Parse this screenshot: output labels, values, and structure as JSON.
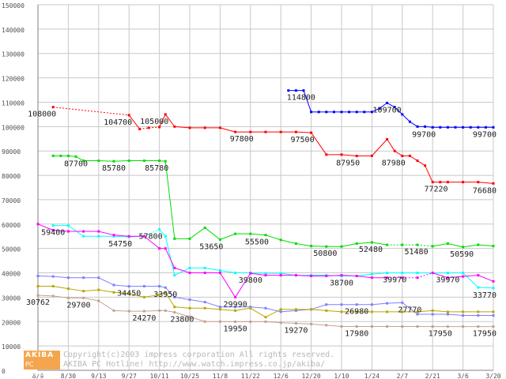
{
  "chart_data": {
    "type": "line",
    "ylim": [
      0,
      150000
    ],
    "yticks": [
      0,
      10000,
      20000,
      30000,
      40000,
      50000,
      60000,
      70000,
      80000,
      90000,
      100000,
      110000,
      120000,
      130000,
      140000,
      150000
    ],
    "ytick_labels": [
      "0",
      "10000",
      "20000",
      "30000",
      "40000",
      "50000",
      "60000",
      "70000",
      "80000",
      "90000",
      "100000",
      "110000",
      "120000",
      "130000",
      "140000",
      "150000"
    ],
    "xlim": [
      0,
      30
    ],
    "x_tick_positions": [
      0,
      2,
      4,
      6,
      8,
      10,
      12,
      14,
      16,
      18,
      20,
      22,
      24,
      26,
      28,
      30
    ],
    "x_tick_labels": [
      "8/9",
      "8/30",
      "9/13",
      "9/27",
      "10/11",
      "10/25",
      "11/8",
      "11/22",
      "12/6",
      "12/20",
      "1/10",
      "1/24",
      "2/7",
      "2/21",
      "3/6",
      "3/20"
    ],
    "grid": true,
    "series": [
      {
        "color": "#0000ff",
        "x": [
          16.5,
          17,
          17.5,
          18,
          18.5,
          19,
          19.5,
          20,
          20.5,
          21,
          21.5,
          22,
          22.5,
          23,
          23.5,
          24,
          24.5,
          25,
          25.5,
          26,
          26.5,
          27,
          27.5,
          28,
          28.5,
          29,
          29.5,
          30
        ],
        "values": [
          114800,
          114800,
          114800,
          106000,
          106000,
          106000,
          106000,
          106000,
          106000,
          106000,
          106000,
          106000,
          107500,
          109700,
          108000,
          105000,
          102000,
          100000,
          100000,
          99700,
          99700,
          99700,
          99700,
          99700,
          99700,
          99700,
          99700,
          99700
        ],
        "dashed_segments": []
      },
      {
        "color": "#ff0000",
        "x": [
          1,
          6,
          6.7,
          7.3,
          8,
          8.4,
          9,
          10,
          11,
          12,
          13,
          14,
          15,
          16,
          17,
          18,
          19,
          20,
          21,
          22,
          23,
          23.5,
          24,
          24.5,
          25,
          25.5,
          26,
          26.5,
          27,
          28,
          29,
          30
        ],
        "values": [
          108000,
          104700,
          99000,
          99500,
          99800,
          105000,
          100000,
          99500,
          99500,
          99500,
          97800,
          97800,
          97800,
          97800,
          97800,
          97500,
          88500,
          88500,
          87950,
          88000,
          94800,
          90000,
          87980,
          88000,
          86000,
          84000,
          77220,
          77220,
          77220,
          77220,
          77220,
          76680
        ],
        "dashed_segments": [
          [
            1,
            6
          ],
          [
            6.7,
            8
          ]
        ]
      },
      {
        "color": "#00dd00",
        "x": [
          1,
          1.5,
          2,
          2.5,
          3,
          4,
          5,
          6,
          7,
          8,
          8.4,
          9,
          10,
          11,
          12,
          13,
          14,
          15,
          16,
          17,
          18,
          19,
          20,
          21,
          22,
          23,
          24,
          25,
          26,
          27,
          28,
          29,
          30
        ],
        "values": [
          88000,
          88000,
          88000,
          87700,
          86000,
          86000,
          85780,
          86000,
          86000,
          86000,
          85780,
          54000,
          54000,
          58500,
          53650,
          56000,
          56000,
          55500,
          53500,
          52000,
          51000,
          50800,
          50800,
          52000,
          52480,
          51480,
          51480,
          51480,
          50900,
          52000,
          50590,
          51500,
          51000
        ],
        "dashed_segments": [
          [
            23,
            26
          ]
        ]
      },
      {
        "color": "#00ffff",
        "x": [
          1,
          2,
          3,
          4,
          5,
          6,
          7,
          8,
          8.4,
          9,
          10,
          11,
          12,
          13,
          14,
          15,
          16,
          17,
          18,
          19,
          20,
          21,
          22,
          23,
          24,
          25,
          26,
          27,
          28,
          29,
          30
        ],
        "values": [
          59400,
          59400,
          55000,
          55000,
          55000,
          54750,
          55000,
          57800,
          55000,
          39000,
          42000,
          42000,
          41000,
          40000,
          40000,
          39800,
          39800,
          39000,
          39000,
          39000,
          38700,
          38700,
          39500,
          39970,
          39970,
          39970,
          39970,
          39970,
          39970,
          34000,
          33770
        ],
        "dashed_segments": [
          [
            7,
            8
          ]
        ]
      },
      {
        "color": "#ff00ff",
        "x": [
          0,
          1,
          2,
          3,
          4,
          5,
          6,
          7,
          8,
          8.4,
          9,
          10,
          11,
          12,
          13,
          14,
          15,
          16,
          17,
          18,
          19,
          20,
          21,
          22,
          23,
          24,
          25,
          26,
          27,
          28,
          29,
          30
        ],
        "values": [
          60000,
          57500,
          57000,
          57000,
          57000,
          55500,
          55000,
          55000,
          50000,
          50000,
          42000,
          40000,
          40000,
          40000,
          29990,
          39800,
          39000,
          39000,
          39000,
          38700,
          38700,
          39000,
          38700,
          38000,
          38000,
          38000,
          38000,
          39970,
          38000,
          38500,
          39000,
          36500
        ],
        "dashed_segments": [
          [
            23,
            26
          ]
        ]
      },
      {
        "color": "#7f7fff",
        "x": [
          0,
          1,
          2,
          3,
          4,
          5,
          6,
          7,
          8,
          8.4,
          9,
          10,
          11,
          12,
          13,
          14,
          15,
          16,
          17,
          18,
          19,
          20,
          21,
          22,
          23,
          24,
          25,
          26,
          27,
          28,
          29,
          30
        ],
        "values": [
          38700,
          38500,
          38000,
          38000,
          38000,
          35000,
          34450,
          34500,
          34500,
          33950,
          30000,
          29000,
          28000,
          26000,
          26000,
          26000,
          25500,
          24000,
          24500,
          25000,
          26980,
          26980,
          26980,
          26980,
          27500,
          27770,
          23000,
          23000,
          23000,
          22500,
          22500,
          22500
        ],
        "dashed_segments": []
      },
      {
        "color": "#b8a800",
        "x": [
          0,
          1,
          2,
          3,
          4,
          5,
          6,
          7,
          8,
          8.4,
          9,
          10,
          11,
          12,
          13,
          14,
          15,
          16,
          17,
          18,
          19,
          20,
          21,
          22,
          23,
          24,
          25,
          26,
          27,
          28,
          29,
          30
        ],
        "values": [
          34500,
          34500,
          33500,
          32500,
          33000,
          32000,
          31500,
          30000,
          31000,
          32000,
          26000,
          25500,
          25500,
          25000,
          24500,
          25500,
          21800,
          25000,
          25000,
          25000,
          24500,
          24000,
          24000,
          24000,
          24000,
          24000,
          24000,
          24500,
          24000,
          24000,
          24000,
          24000
        ],
        "dashed_segments": []
      },
      {
        "color": "#c8a090",
        "x": [
          0,
          1,
          2,
          3,
          4,
          5,
          6,
          7,
          8,
          8.4,
          9,
          10,
          11,
          12,
          13,
          14,
          15,
          16,
          17,
          18,
          19,
          20,
          21,
          22,
          23,
          24,
          25,
          26,
          27,
          28,
          29,
          30
        ],
        "values": [
          30762,
          30500,
          29700,
          29700,
          28500,
          24500,
          24270,
          24270,
          24500,
          24500,
          23800,
          22000,
          20000,
          20000,
          19950,
          19950,
          19950,
          19500,
          19270,
          19000,
          18500,
          18000,
          17980,
          17980,
          17980,
          17980,
          17980,
          17950,
          17950,
          17950,
          17950,
          17950
        ],
        "dashed_segments": []
      }
    ],
    "data_labels": [
      {
        "text": "114800",
        "x": 16.5,
        "y": 114800,
        "pos": "below-right"
      },
      {
        "text": "109700",
        "x": 23,
        "y": 109700,
        "pos": "below"
      },
      {
        "text": "99700",
        "x": 26,
        "y": 99700,
        "pos": "below-left"
      },
      {
        "text": "99700",
        "x": 30,
        "y": 99700,
        "pos": "below-left"
      },
      {
        "text": "108000",
        "x": 1,
        "y": 108000,
        "pos": "below-left"
      },
      {
        "text": "104700",
        "x": 6,
        "y": 104700,
        "pos": "below-left"
      },
      {
        "text": "105000",
        "x": 8.4,
        "y": 105000,
        "pos": "below-left"
      },
      {
        "text": "97800",
        "x": 14,
        "y": 97800,
        "pos": "below-left"
      },
      {
        "text": "97500",
        "x": 18,
        "y": 97500,
        "pos": "below-left"
      },
      {
        "text": "87950",
        "x": 21,
        "y": 87950,
        "pos": "below-left"
      },
      {
        "text": "87980",
        "x": 24,
        "y": 87980,
        "pos": "below-left"
      },
      {
        "text": "77220",
        "x": 26.8,
        "y": 77220,
        "pos": "below-left"
      },
      {
        "text": "76680",
        "x": 30,
        "y": 76680,
        "pos": "below-left"
      },
      {
        "text": "87700",
        "x": 2.5,
        "y": 87700,
        "pos": "below"
      },
      {
        "text": "85780",
        "x": 5,
        "y": 85780,
        "pos": "below"
      },
      {
        "text": "85780",
        "x": 8.4,
        "y": 85780,
        "pos": "below-left"
      },
      {
        "text": "59400",
        "x": 1,
        "y": 59400,
        "pos": "below"
      },
      {
        "text": "54750",
        "x": 6,
        "y": 54750,
        "pos": "below-left"
      },
      {
        "text": "57800",
        "x": 8,
        "y": 57800,
        "pos": "below-left"
      },
      {
        "text": "53650",
        "x": 12,
        "y": 53650,
        "pos": "below-left"
      },
      {
        "text": "55500",
        "x": 15,
        "y": 55500,
        "pos": "below-left"
      },
      {
        "text": "50800",
        "x": 19.5,
        "y": 50800,
        "pos": "below-left"
      },
      {
        "text": "52480",
        "x": 22.5,
        "y": 52480,
        "pos": "below-left"
      },
      {
        "text": "51480",
        "x": 25.5,
        "y": 51480,
        "pos": "below-left"
      },
      {
        "text": "50590",
        "x": 28.5,
        "y": 50590,
        "pos": "below-left"
      },
      {
        "text": "39800",
        "x": 14,
        "y": 39800,
        "pos": "below"
      },
      {
        "text": "38700",
        "x": 20,
        "y": 38700,
        "pos": "below"
      },
      {
        "text": "39970",
        "x": 23.5,
        "y": 39970,
        "pos": "below"
      },
      {
        "text": "39970",
        "x": 27,
        "y": 39970,
        "pos": "below"
      },
      {
        "text": "33770",
        "x": 30,
        "y": 33770,
        "pos": "below-left"
      },
      {
        "text": "30762",
        "x": 0,
        "y": 30762,
        "pos": "below"
      },
      {
        "text": "34450",
        "x": 6,
        "y": 34450,
        "pos": "below"
      },
      {
        "text": "33950",
        "x": 8.4,
        "y": 33950,
        "pos": "below"
      },
      {
        "text": "29700",
        "x": 2,
        "y": 29700,
        "pos": "below-right"
      },
      {
        "text": "24270",
        "x": 7,
        "y": 24270,
        "pos": "below"
      },
      {
        "text": "23800",
        "x": 9.5,
        "y": 23800,
        "pos": "below"
      },
      {
        "text": "29990",
        "x": 13,
        "y": 29990,
        "pos": "below"
      },
      {
        "text": "26980",
        "x": 21,
        "y": 26980,
        "pos": "below"
      },
      {
        "text": "27770",
        "x": 24.5,
        "y": 27770,
        "pos": "below"
      },
      {
        "text": "19950",
        "x": 13,
        "y": 19950,
        "pos": "below"
      },
      {
        "text": "19270",
        "x": 17,
        "y": 19270,
        "pos": "below"
      },
      {
        "text": "17980",
        "x": 21,
        "y": 17980,
        "pos": "below"
      },
      {
        "text": "17950",
        "x": 26.5,
        "y": 17950,
        "pos": "below"
      },
      {
        "text": "17950",
        "x": 30,
        "y": 17950,
        "pos": "below-left"
      }
    ]
  },
  "footer": {
    "logo_top": "AKIBA",
    "logo_bottom": "PC Hotline!",
    "copyright": "Copyright(c)2003 impress corporation All rights reserved.",
    "hotline": "AKIBA PC Hotline! http://www.watch.impress.co.jp/akiba/"
  }
}
